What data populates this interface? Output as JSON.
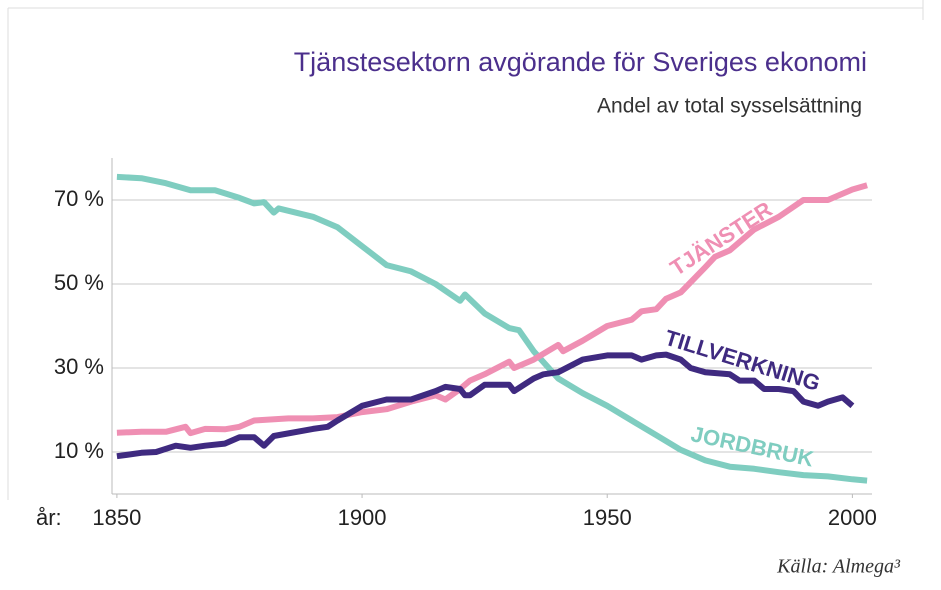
{
  "chart_data": {
    "type": "line",
    "title": "Tjänstesektorn avgörande för Sveriges ekonomi",
    "subtitle": "Andel av total sysselsättning",
    "x_label": "år:",
    "source": "Källa: Almega³",
    "xlim": [
      1849,
      2004
    ],
    "xticks": [
      1850,
      1900,
      1950,
      2000
    ],
    "ylim": [
      0,
      80
    ],
    "yticks": [
      {
        "value": 10,
        "label": "10 %"
      },
      {
        "value": 30,
        "label": "30 %"
      },
      {
        "value": 50,
        "label": "50 %"
      },
      {
        "value": 70,
        "label": "70 %"
      }
    ],
    "grid": true,
    "series": [
      {
        "name": "JORDBRUK",
        "color": "#7fcdc0",
        "x": [
          1850,
          1855,
          1860,
          1865,
          1870,
          1875,
          1878,
          1880,
          1882,
          1883,
          1890,
          1895,
          1900,
          1905,
          1910,
          1915,
          1920,
          1921,
          1925,
          1930,
          1932,
          1935,
          1940,
          1945,
          1950,
          1955,
          1960,
          1965,
          1970,
          1975,
          1980,
          1985,
          1990,
          1995,
          2000,
          2003
        ],
        "values": [
          75.5,
          75.2,
          74,
          72.3,
          72.3,
          70.5,
          69.2,
          69.5,
          67,
          68,
          66,
          63.5,
          59,
          54.5,
          53,
          50,
          46,
          47.5,
          43,
          39.5,
          39,
          34,
          27.5,
          24,
          21,
          17.5,
          14,
          10.5,
          8,
          6.5,
          6,
          5.2,
          4.5,
          4.2,
          3.5,
          3.2
        ]
      },
      {
        "name": "TJÄNSTER",
        "color": "#ef8fb3",
        "x": [
          1850,
          1855,
          1860,
          1864,
          1865,
          1868,
          1872,
          1875,
          1878,
          1885,
          1890,
          1895,
          1900,
          1905,
          1910,
          1915,
          1917,
          1920,
          1922,
          1925,
          1930,
          1931,
          1935,
          1940,
          1941,
          1945,
          1950,
          1955,
          1957,
          1960,
          1962,
          1965,
          1970,
          1972,
          1975,
          1980,
          1985,
          1990,
          1995,
          2000,
          2003
        ],
        "values": [
          14.6,
          14.8,
          14.8,
          16,
          14.5,
          15.5,
          15.4,
          16,
          17.5,
          18,
          18,
          18.3,
          19.5,
          20.2,
          22,
          23.5,
          22.5,
          25,
          27,
          28.5,
          31.5,
          30,
          32,
          35.5,
          34,
          36.5,
          40,
          41.5,
          43.5,
          44,
          46.5,
          48,
          54,
          56.5,
          58,
          63,
          66,
          70,
          70,
          72.5,
          73.5
        ]
      },
      {
        "name": "TILLVERKNING",
        "color": "#3f2a80",
        "x": [
          1850,
          1855,
          1858,
          1862,
          1865,
          1868,
          1872,
          1875,
          1878,
          1880,
          1882,
          1890,
          1893,
          1895,
          1900,
          1905,
          1910,
          1915,
          1917,
          1920,
          1921,
          1922,
          1925,
          1930,
          1931,
          1935,
          1937,
          1940,
          1945,
          1950,
          1955,
          1957,
          1960,
          1962,
          1965,
          1967,
          1970,
          1975,
          1977,
          1980,
          1982,
          1985,
          1988,
          1990,
          1993,
          1995,
          1998,
          2000
        ],
        "values": [
          9,
          9.8,
          10,
          11.5,
          11,
          11.5,
          12,
          13.5,
          13.5,
          11.5,
          13.8,
          15.5,
          16,
          17.5,
          21,
          22.5,
          22.5,
          24.5,
          25.5,
          25,
          23.5,
          23.5,
          26,
          26,
          24.5,
          27.5,
          28.5,
          29,
          32,
          33,
          33,
          32,
          33,
          33.2,
          32,
          30,
          29,
          28.5,
          27,
          27,
          25,
          25,
          24.5,
          22,
          21,
          22,
          23,
          21
        ]
      }
    ]
  }
}
